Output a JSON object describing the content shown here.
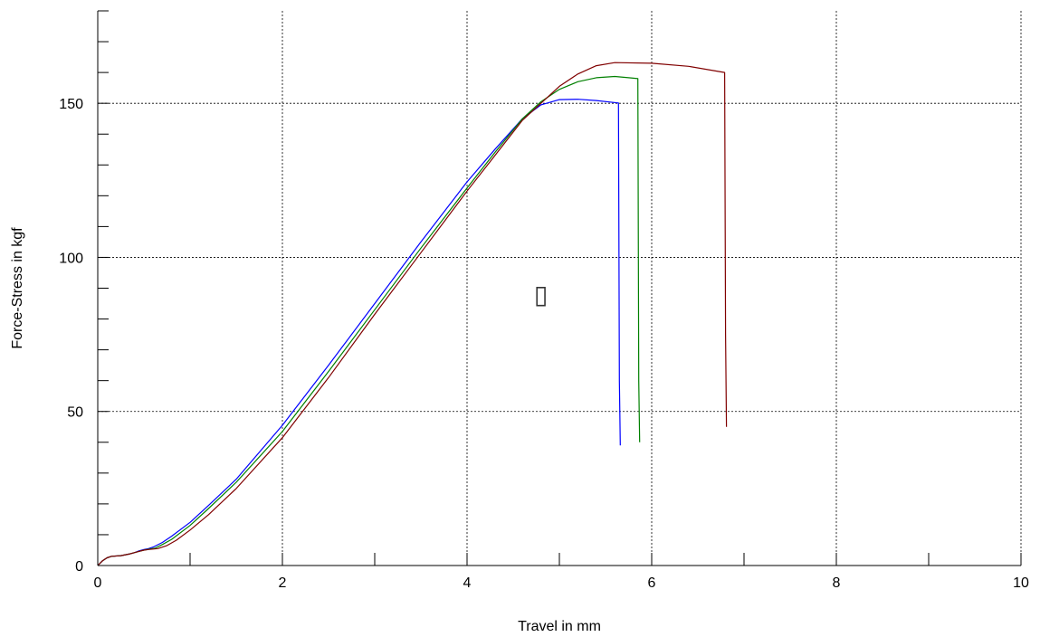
{
  "chart_data": {
    "type": "line",
    "title": "",
    "xlabel": "Travel in mm",
    "ylabel": "Force-Stress in kgf",
    "xlim": [
      0,
      10
    ],
    "ylim": [
      0,
      180
    ],
    "grid": true,
    "x_ticks": [
      0,
      2,
      4,
      6,
      8,
      10
    ],
    "x_tick_labels": [
      "0",
      "2",
      "4",
      "6",
      "8",
      "10"
    ],
    "y_ticks": [
      0,
      50,
      100,
      150
    ],
    "y_tick_labels": [
      "0",
      "50",
      "100",
      "150"
    ],
    "annotation_glyph": "▯",
    "annotation_x": 4.8,
    "annotation_y": 88,
    "series": [
      {
        "color": "#0000ff",
        "x": [
          0,
          0.05,
          0.1,
          0.15,
          0.25,
          0.3,
          0.35,
          0.4,
          0.45,
          0.5,
          0.55,
          0.6,
          0.7,
          0.8,
          1.0,
          1.2,
          1.5,
          2.0,
          2.5,
          3.0,
          3.5,
          4.0,
          4.3,
          4.6,
          4.8,
          5.0,
          5.2,
          5.4,
          5.55,
          5.64,
          5.65,
          5.66
        ],
        "y": [
          0,
          1.5,
          2.5,
          3,
          3.2,
          3.5,
          3.8,
          4.2,
          4.8,
          5.2,
          5.5,
          6,
          7.5,
          9.5,
          14,
          19.5,
          28,
          45.5,
          65,
          85,
          105,
          124.5,
          135,
          145,
          149.5,
          151.2,
          151.3,
          150.9,
          150.4,
          150.1,
          60,
          39
        ]
      },
      {
        "color": "#008000",
        "x": [
          0,
          0.05,
          0.1,
          0.15,
          0.25,
          0.3,
          0.35,
          0.4,
          0.45,
          0.5,
          0.55,
          0.62,
          0.7,
          0.8,
          1.0,
          1.2,
          1.5,
          2.0,
          2.5,
          3.0,
          3.5,
          4.0,
          4.3,
          4.6,
          4.8,
          5.0,
          5.2,
          5.4,
          5.6,
          5.75,
          5.85,
          5.86,
          5.87
        ],
        "y": [
          0,
          1.5,
          2.5,
          3,
          3.2,
          3.5,
          3.8,
          4.2,
          4.6,
          5,
          5.3,
          5.6,
          6.8,
          8.5,
          13,
          18.5,
          27,
          43.5,
          63,
          83,
          103,
          122.5,
          134,
          145,
          150.5,
          154.5,
          157,
          158.3,
          158.7,
          158.3,
          158,
          60,
          40
        ]
      },
      {
        "color": "#800000",
        "x": [
          0,
          0.05,
          0.1,
          0.15,
          0.25,
          0.3,
          0.35,
          0.4,
          0.45,
          0.5,
          0.55,
          0.65,
          0.75,
          0.85,
          1.0,
          1.2,
          1.5,
          2.0,
          2.5,
          3.0,
          3.5,
          4.0,
          4.3,
          4.6,
          4.8,
          5.0,
          5.2,
          5.4,
          5.6,
          6.0,
          6.4,
          6.79,
          6.8,
          6.81
        ],
        "y": [
          0,
          1.5,
          2.5,
          3,
          3.2,
          3.5,
          3.8,
          4.2,
          4.6,
          5,
          5.2,
          5.5,
          6.5,
          8.2,
          11.5,
          16.5,
          25,
          41.5,
          61,
          81.5,
          101.5,
          121.5,
          133,
          144.5,
          150,
          155.5,
          159.5,
          162.2,
          163.2,
          163,
          162,
          160,
          75,
          45
        ]
      }
    ]
  }
}
